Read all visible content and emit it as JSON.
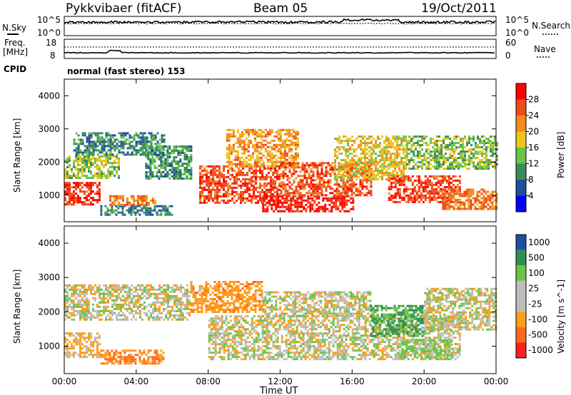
{
  "header": {
    "station": "Pykkvibaer (fitACF)",
    "beam": "Beam 05",
    "date": "19/Oct/2011"
  },
  "noise_panel": {
    "left_label": "N.Sky",
    "left_tick_top": "10^5",
    "left_tick_bottom": "10^0",
    "right_tick_top": "10^5",
    "right_tick_bottom": "10^0",
    "right_label": "N.Search"
  },
  "freq_panel": {
    "left_label_1": "Freq.",
    "left_label_2": "[MHz]",
    "left_tick_top": "18",
    "left_tick_bottom": "8",
    "right_tick_top": "60",
    "right_tick_bottom": "0",
    "right_label": "Nave"
  },
  "cpid_panel": {
    "label": "CPID",
    "text": "normal (fast stereo) 153"
  },
  "colors": {
    "power": [
      "#0000ff",
      "#1e4fa0",
      "#3a8c5c",
      "#6cc24a",
      "#f0c419",
      "#f28a1e",
      "#f04a1a",
      "#ff0000"
    ],
    "velocity": [
      "#ff1f1f",
      "#ff6a1a",
      "#ff9c1a",
      "#bdbdbd",
      "#bdbdbd",
      "#6cc24a",
      "#2f8f52",
      "#1e4fa0"
    ],
    "ground_scatter": "#bdbdbd"
  },
  "chart_data": [
    {
      "type": "heatmap",
      "ylabel": "Slant Range [km]",
      "yticks": [
        "1000",
        "2000",
        "3000",
        "4000"
      ],
      "ylim": [
        200,
        4500
      ],
      "x_domain_hours": [
        0,
        24
      ],
      "colorbar_label": "Power [dB]",
      "colorbar_ticks": [
        "4",
        "8",
        "12",
        "16",
        "20",
        "24",
        "28"
      ],
      "colorbar_range": [
        0,
        30
      ],
      "regions": [
        {
          "t0": 0.0,
          "t1": 2.0,
          "r0": 700,
          "r1": 1400,
          "value": 26
        },
        {
          "t0": 0.0,
          "t1": 3.0,
          "r0": 1500,
          "r1": 2200,
          "value": 14
        },
        {
          "t0": 0.5,
          "t1": 5.5,
          "r0": 2200,
          "r1": 2900,
          "value": 9
        },
        {
          "t0": 2.0,
          "t1": 6.0,
          "r0": 400,
          "r1": 700,
          "value": 8
        },
        {
          "t0": 2.5,
          "t1": 5.0,
          "r0": 700,
          "r1": 1000,
          "value": 22
        },
        {
          "t0": 4.5,
          "t1": 7.0,
          "r0": 1500,
          "r1": 2500,
          "value": 10
        },
        {
          "t0": 7.5,
          "t1": 12.0,
          "r0": 800,
          "r1": 1900,
          "value": 25
        },
        {
          "t0": 9.0,
          "t1": 13.0,
          "r0": 1900,
          "r1": 3000,
          "value": 20
        },
        {
          "t0": 11.0,
          "t1": 16.0,
          "r0": 500,
          "r1": 1000,
          "value": 28
        },
        {
          "t0": 12.0,
          "t1": 17.0,
          "r0": 1000,
          "r1": 2000,
          "value": 24
        },
        {
          "t0": 15.0,
          "t1": 19.0,
          "r0": 1500,
          "r1": 2800,
          "value": 17
        },
        {
          "t0": 18.0,
          "t1": 22.0,
          "r0": 800,
          "r1": 1600,
          "value": 25
        },
        {
          "t0": 19.0,
          "t1": 24.0,
          "r0": 1800,
          "r1": 2800,
          "value": 13
        },
        {
          "t0": 21.0,
          "t1": 24.0,
          "r0": 600,
          "r1": 1200,
          "value": 22
        }
      ]
    },
    {
      "type": "heatmap",
      "ylabel": "Slant Range [km]",
      "yticks": [
        "1000",
        "2000",
        "3000",
        "4000"
      ],
      "ylim": [
        200,
        4500
      ],
      "xticks": [
        "00:00",
        "04:00",
        "08:00",
        "12:00",
        "16:00",
        "20:00",
        "00:00"
      ],
      "xtick_hours": [
        0,
        4,
        8,
        12,
        16,
        20,
        24
      ],
      "xlabel": "Time UT",
      "colorbar_label": "Velocity [m s^-1]",
      "colorbar_ticks": [
        "-1000",
        "-500",
        "-100",
        "-25",
        "25",
        "100",
        "500",
        "1000"
      ],
      "regions": [
        {
          "t0": 0.0,
          "t1": 2.0,
          "r0": 700,
          "r1": 1400,
          "value": -100
        },
        {
          "t0": 0.0,
          "t1": 7.0,
          "r0": 1800,
          "r1": 2800,
          "value": 0
        },
        {
          "t0": 2.0,
          "t1": 5.5,
          "r0": 500,
          "r1": 900,
          "value": -300
        },
        {
          "t0": 7.0,
          "t1": 11.0,
          "r0": 2000,
          "r1": 2900,
          "value": -200
        },
        {
          "t0": 8.0,
          "t1": 22.0,
          "r0": 600,
          "r1": 1900,
          "value": 0
        },
        {
          "t0": 11.0,
          "t1": 17.0,
          "r0": 1900,
          "r1": 2600,
          "value": 0
        },
        {
          "t0": 17.0,
          "t1": 20.0,
          "r0": 1300,
          "r1": 2200,
          "value": 300
        },
        {
          "t0": 18.5,
          "t1": 21.5,
          "r0": 700,
          "r1": 1200,
          "value": 150
        },
        {
          "t0": 20.0,
          "t1": 24.0,
          "r0": 1500,
          "r1": 2700,
          "value": 0
        }
      ]
    }
  ]
}
